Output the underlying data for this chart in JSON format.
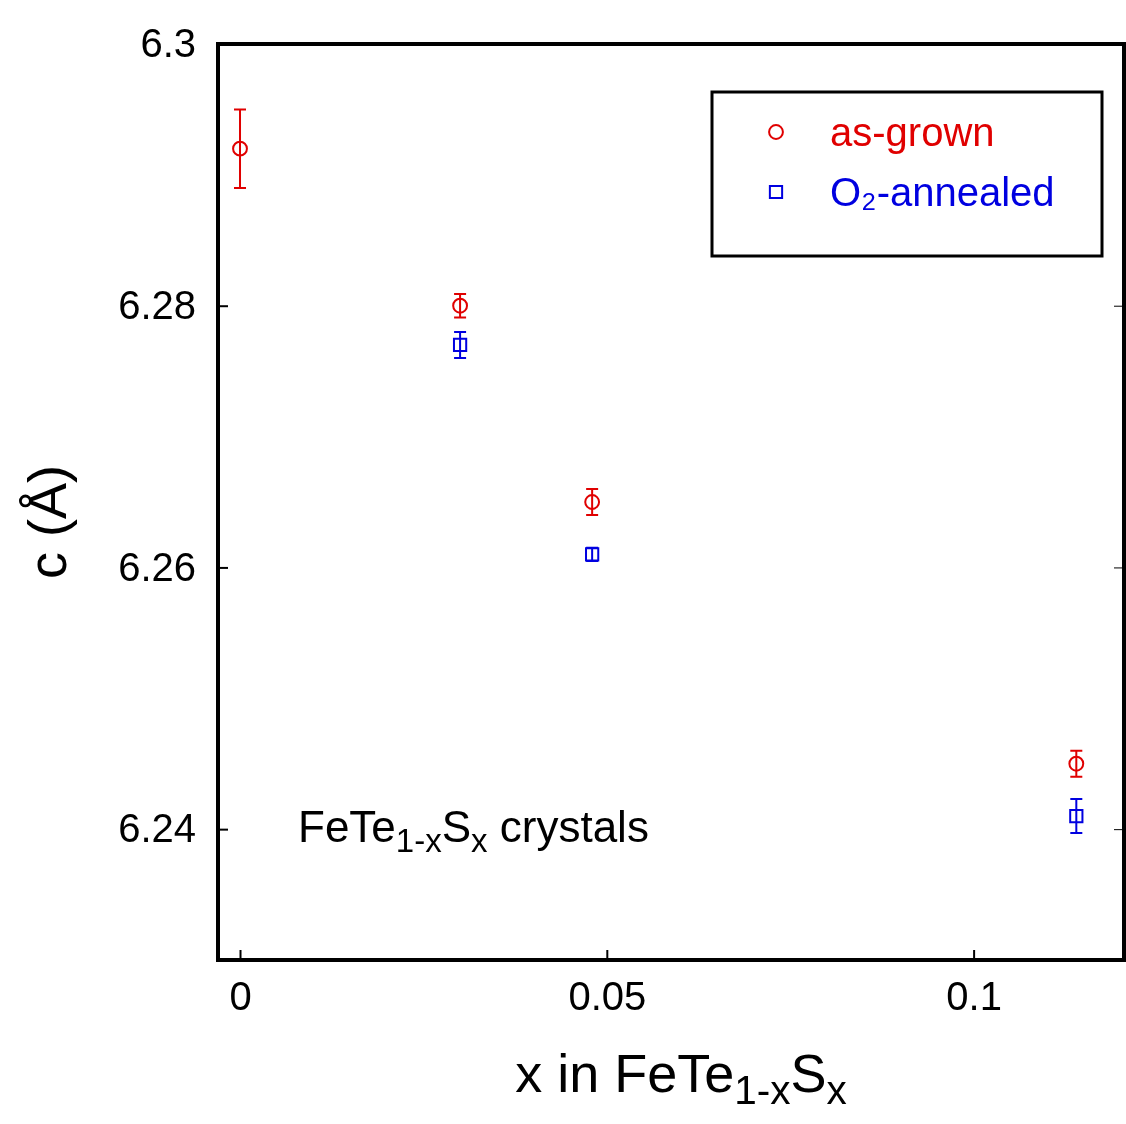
{
  "chart_data": {
    "type": "scatter",
    "xlabel": "x in FeTe$_{1-x}$S$_{x}$",
    "ylabel": "c (Å)",
    "annotations": [
      "FeTe$_{1-x}$S$_{x}$ crystals"
    ],
    "xlim": [
      -0.003,
      0.1205
    ],
    "ylim": [
      6.23,
      6.3
    ],
    "xticks": [
      0,
      0.05,
      0.1
    ],
    "yticks": [
      6.24,
      6.26,
      6.28,
      6.3
    ],
    "grid": false,
    "legend": "top right",
    "series": [
      {
        "name": "as-grown",
        "color": "#e00000",
        "marker": "circle",
        "x": [
          0,
          0.03,
          0.048,
          0.114
        ],
        "values": [
          6.292,
          6.28,
          6.265,
          6.245
        ],
        "errors": [
          0.003,
          0.0009,
          0.001,
          0.001
        ]
      },
      {
        "name": "O₂-annealed",
        "color": "#0000e0",
        "marker": "square",
        "x": [
          0.03,
          0.048,
          0.114
        ],
        "values": [
          6.277,
          6.261,
          6.241
        ],
        "errors": [
          0.001,
          0.0005,
          0.0013
        ]
      }
    ]
  }
}
